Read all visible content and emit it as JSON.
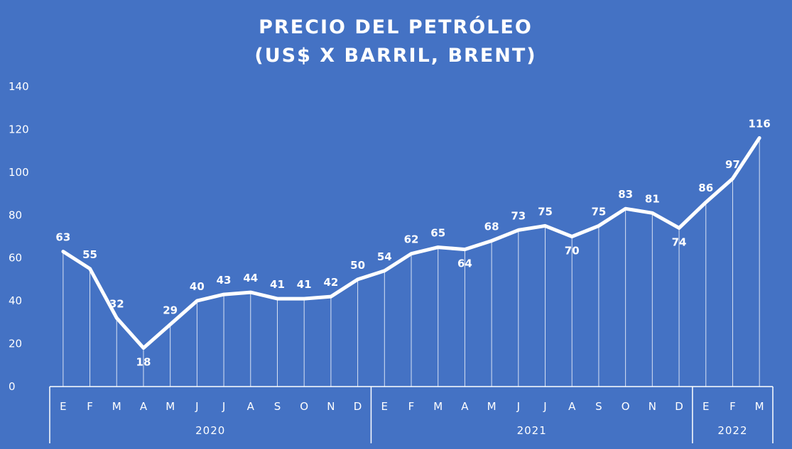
{
  "chart_data": {
    "type": "line",
    "title_line1": "PRECIO DEL PETRÓLEO",
    "title_line2": "(US$ X BARRIL, BRENT)",
    "xlabel": "",
    "ylabel": "",
    "ylim": [
      0,
      140
    ],
    "yticks": [
      0,
      20,
      40,
      60,
      80,
      100,
      120,
      140
    ],
    "grid": false,
    "drop_lines": true,
    "categories": [
      "E",
      "F",
      "M",
      "A",
      "M",
      "J",
      "J",
      "A",
      "S",
      "O",
      "N",
      "D",
      "E",
      "F",
      "M",
      "A",
      "M",
      "J",
      "J",
      "A",
      "S",
      "O",
      "N",
      "D",
      "E",
      "F",
      "M"
    ],
    "groups": [
      {
        "label": "2020",
        "count": 12
      },
      {
        "label": "2021",
        "count": 12
      },
      {
        "label": "2022",
        "count": 3
      }
    ],
    "series": [
      {
        "values": [
          63,
          55,
          32,
          18,
          29,
          40,
          43,
          44,
          41,
          41,
          42,
          50,
          54,
          62,
          65,
          64,
          68,
          73,
          75,
          70,
          75,
          83,
          81,
          74,
          86,
          97,
          116
        ]
      }
    ]
  },
  "colors": {
    "background": "#4472C4",
    "line": "#FFFFFF",
    "text": "#FFFFFF",
    "drop_line": "#D9E2F3"
  }
}
